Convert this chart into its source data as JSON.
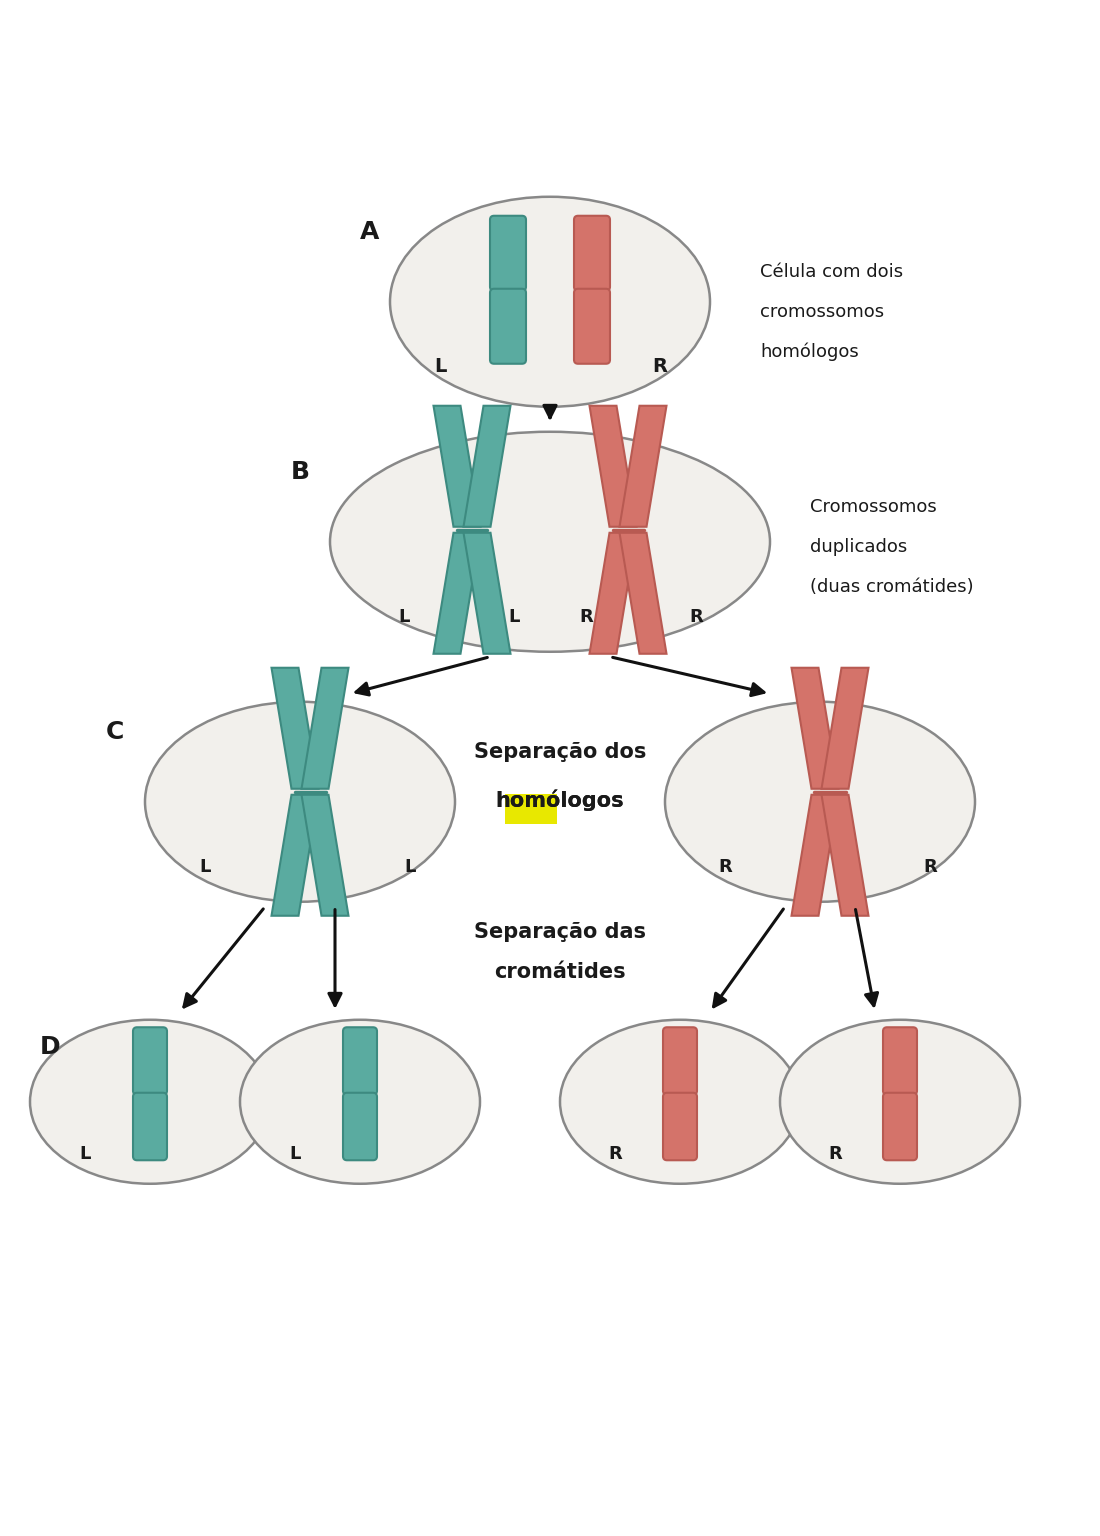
{
  "bg_color": "#e5e0cc",
  "cell_bg": "#f2f0ec",
  "cell_edge": "#888888",
  "teal_color": "#5aaba0",
  "red_color": "#d4736a",
  "teal_dark": "#3d8a80",
  "red_dark": "#b85a52",
  "text_color": "#1a1a1a",
  "arrow_color": "#111111",
  "highlight_yellow": "#e8e800",
  "white_top": "#ffffff",
  "label_A": "A",
  "label_B": "B",
  "label_C": "C",
  "label_D": "D",
  "text_A_line1": "Célula com dois",
  "text_A_line2": "cromossomos",
  "text_A_line3": "homólogos",
  "text_B_line1": "Cromossomos",
  "text_B_line2": "duplicados",
  "text_B_line3": "(duas cromátides)",
  "text_C1": "Separação dos",
  "text_C2_pre": "h",
  "text_C2_hl1": "o",
  "text_C2_hl2": "m",
  "text_C2_post": "ólogos",
  "text_D1": "Separação das",
  "text_D2": "cromátides",
  "label_L": "L",
  "label_R": "R"
}
